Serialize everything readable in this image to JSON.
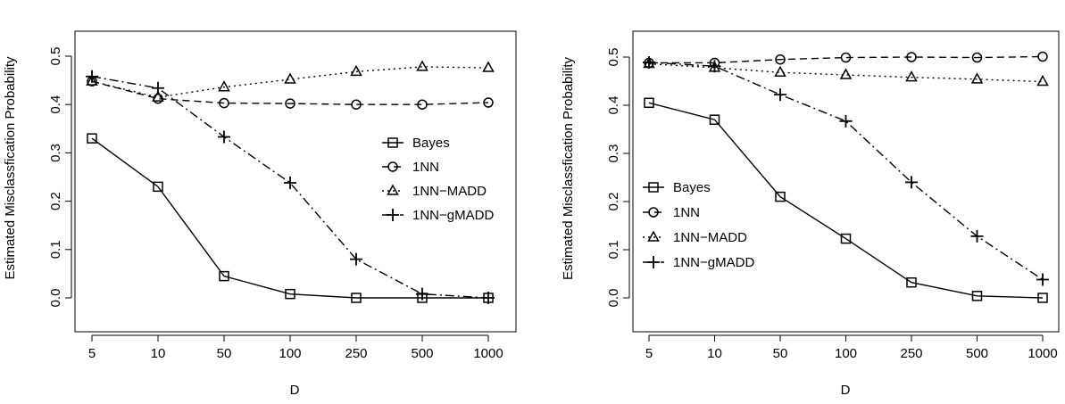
{
  "chart_data": [
    {
      "type": "line",
      "xlabel": "D",
      "ylabel": "Estimated Misclassfication Probability",
      "categories": [
        "5",
        "10",
        "50",
        "100",
        "250",
        "500",
        "1000"
      ],
      "yticks": [
        "0.0",
        "0.1",
        "0.2",
        "0.3",
        "0.4",
        "0.5"
      ],
      "ylim": [
        0,
        0.5
      ],
      "legend_position": "right",
      "grid": false,
      "series": [
        {
          "name": "Bayes",
          "marker": "square",
          "dash": "solid",
          "values": [
            0.33,
            0.23,
            0.045,
            0.008,
            0.0,
            0.0,
            0.0
          ]
        },
        {
          "name": "1NN",
          "marker": "circle",
          "dash": "dashed",
          "values": [
            0.448,
            0.412,
            0.403,
            0.402,
            0.4,
            0.4,
            0.404
          ]
        },
        {
          "name": "1NN−MADD",
          "marker": "triangle",
          "dash": "dotted",
          "values": [
            0.448,
            0.415,
            0.436,
            0.452,
            0.468,
            0.478,
            0.476
          ]
        },
        {
          "name": "1NN−gMADD",
          "marker": "plus",
          "dash": "dotdash",
          "values": [
            0.458,
            0.434,
            0.333,
            0.238,
            0.08,
            0.008,
            0.0
          ]
        }
      ]
    },
    {
      "type": "line",
      "xlabel": "D",
      "ylabel": "Estimated Misclassfication Probability",
      "categories": [
        "5",
        "10",
        "50",
        "100",
        "250",
        "500",
        "1000"
      ],
      "yticks": [
        "0.0",
        "0.1",
        "0.2",
        "0.3",
        "0.4",
        "0.5"
      ],
      "ylim": [
        0,
        0.5
      ],
      "legend_position": "left",
      "grid": false,
      "series": [
        {
          "name": "Bayes",
          "marker": "square",
          "dash": "solid",
          "values": [
            0.405,
            0.37,
            0.21,
            0.123,
            0.032,
            0.004,
            0.0
          ]
        },
        {
          "name": "1NN",
          "marker": "circle",
          "dash": "dashed",
          "values": [
            0.488,
            0.488,
            0.495,
            0.499,
            0.5,
            0.499,
            0.501
          ]
        },
        {
          "name": "1NN−MADD",
          "marker": "triangle",
          "dash": "dotted",
          "values": [
            0.486,
            0.478,
            0.468,
            0.463,
            0.458,
            0.454,
            0.449
          ]
        },
        {
          "name": "1NN−gMADD",
          "marker": "plus",
          "dash": "dotdash",
          "values": [
            0.489,
            0.481,
            0.422,
            0.367,
            0.24,
            0.128,
            0.038
          ]
        }
      ]
    }
  ]
}
